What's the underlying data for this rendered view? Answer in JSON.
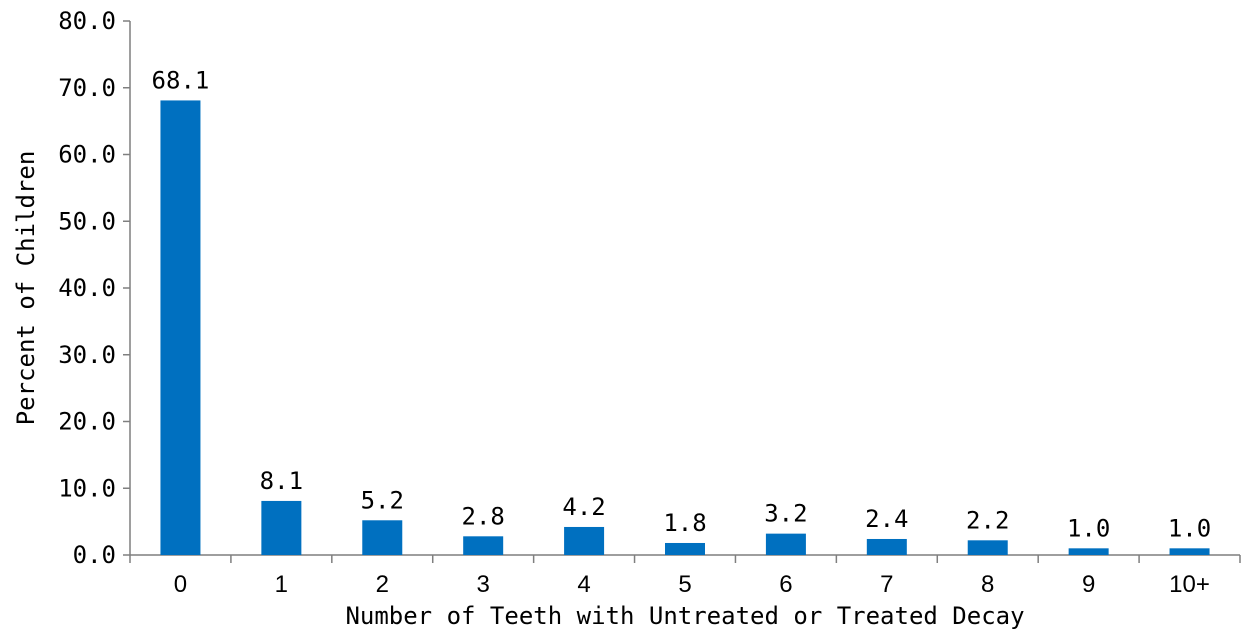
{
  "chart_data": {
    "type": "bar",
    "categories": [
      "0",
      "1",
      "2",
      "3",
      "4",
      "5",
      "6",
      "7",
      "8",
      "9",
      "10+"
    ],
    "values": [
      68.1,
      8.1,
      5.2,
      2.8,
      4.2,
      1.8,
      3.2,
      2.4,
      2.2,
      1.0,
      1.0
    ],
    "value_labels": [
      "68.1",
      "8.1",
      "5.2",
      "2.8",
      "4.2",
      "1.8",
      "3.2",
      "2.4",
      "2.2",
      "1.0",
      "1.0"
    ],
    "title": "",
    "xlabel": "Number of Teeth with Untreated or Treated Decay",
    "ylabel": "Percent of Children",
    "ylim": [
      0,
      80
    ],
    "y_ticks": [
      "0.0",
      "10.0",
      "20.0",
      "30.0",
      "40.0",
      "50.0",
      "60.0",
      "70.0",
      "80.0"
    ],
    "grid": false,
    "legend": "none",
    "bar_color": "#0070C0",
    "axis_color": "#7F7F7F"
  }
}
